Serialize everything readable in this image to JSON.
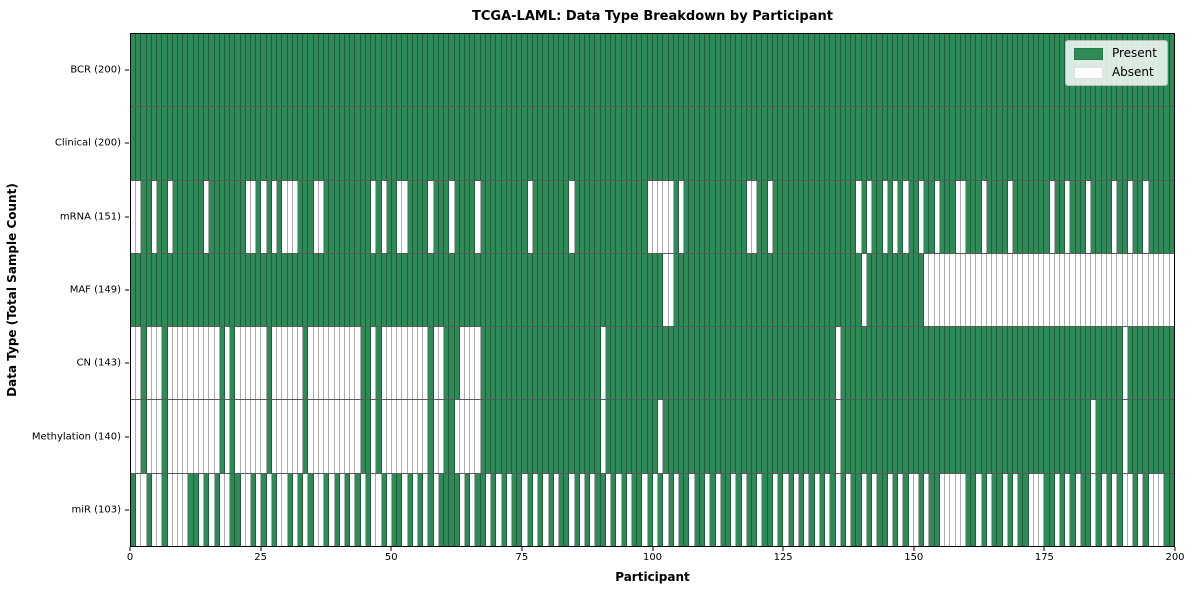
{
  "chart_data": {
    "type": "heatmap",
    "title": "TCGA-LAML: Data Type Breakdown by Participant",
    "xlabel": "Participant",
    "ylabel": "Data Type (Total Sample Count)",
    "x_range": [
      0,
      200
    ],
    "n_participants": 200,
    "x_ticks": [
      0,
      25,
      50,
      75,
      100,
      125,
      150,
      175,
      200
    ],
    "grid": "cell-edges",
    "legend_position": "upper right",
    "legend": [
      {
        "label": "Present",
        "color": "#2e8b57"
      },
      {
        "label": "Absent",
        "color": "#ffffff"
      }
    ],
    "cell_edge_color": "rgba(0,0,0,0.32)",
    "rows": [
      {
        "label": "BCR (200)",
        "present_count": 200,
        "absent_participants": []
      },
      {
        "label": "Clinical (200)",
        "present_count": 200,
        "absent_participants": []
      },
      {
        "label": "mRNA (151)",
        "present_count": 151,
        "absent_participants": [
          0,
          1,
          4,
          7,
          14,
          22,
          23,
          25,
          27,
          29,
          30,
          31,
          35,
          36,
          46,
          48,
          51,
          52,
          57,
          61,
          66,
          76,
          84,
          99,
          100,
          101,
          102,
          103,
          105,
          118,
          119,
          122,
          139,
          141,
          144,
          146,
          148,
          151,
          154,
          158,
          159,
          163,
          168,
          176,
          179,
          183,
          188,
          191,
          194
        ]
      },
      {
        "label": "MAF (149)",
        "present_count": 149,
        "absent_participants": [
          102,
          103,
          140,
          152,
          153,
          154,
          155,
          156,
          157,
          158,
          159,
          160,
          161,
          162,
          163,
          164,
          165,
          166,
          167,
          168,
          169,
          170,
          171,
          172,
          173,
          174,
          175,
          176,
          177,
          178,
          179,
          180,
          181,
          182,
          183,
          184,
          185,
          186,
          187,
          188,
          189,
          190,
          191,
          192,
          193,
          194,
          195,
          196,
          197,
          198,
          199
        ]
      },
      {
        "label": "CN (143)",
        "present_count": 143,
        "absent_participants": [
          0,
          1,
          3,
          4,
          5,
          7,
          8,
          9,
          10,
          11,
          12,
          13,
          14,
          15,
          16,
          18,
          20,
          21,
          22,
          23,
          24,
          25,
          27,
          28,
          29,
          30,
          31,
          32,
          34,
          35,
          36,
          37,
          38,
          39,
          40,
          41,
          42,
          43,
          46,
          48,
          49,
          50,
          51,
          52,
          53,
          54,
          55,
          56,
          58,
          59,
          63,
          64,
          65,
          66,
          90,
          135,
          190
        ]
      },
      {
        "label": "Methylation (140)",
        "present_count": 140,
        "absent_participants": [
          0,
          1,
          3,
          4,
          5,
          7,
          8,
          9,
          10,
          11,
          12,
          13,
          14,
          15,
          16,
          18,
          20,
          21,
          22,
          23,
          24,
          25,
          27,
          28,
          29,
          30,
          31,
          32,
          34,
          35,
          36,
          37,
          38,
          39,
          40,
          41,
          42,
          43,
          46,
          48,
          49,
          50,
          51,
          52,
          53,
          54,
          55,
          56,
          58,
          59,
          62,
          63,
          64,
          65,
          66,
          90,
          101,
          135,
          184,
          190
        ]
      },
      {
        "label": "miR (103)",
        "present_count": 103,
        "absent_participants": [
          1,
          2,
          4,
          5,
          7,
          8,
          9,
          10,
          13,
          15,
          17,
          18,
          21,
          22,
          24,
          26,
          28,
          29,
          31,
          33,
          35,
          36,
          38,
          40,
          42,
          44,
          46,
          47,
          49,
          52,
          54,
          56,
          58,
          63,
          65,
          68,
          70,
          72,
          75,
          77,
          79,
          81,
          84,
          86,
          88,
          91,
          93,
          95,
          98,
          100,
          102,
          104,
          107,
          110,
          112,
          115,
          117,
          120,
          123,
          125,
          127,
          129,
          131,
          133,
          135,
          137,
          140,
          142,
          145,
          147,
          149,
          150,
          152,
          155,
          156,
          157,
          158,
          159,
          162,
          164,
          167,
          169,
          172,
          173,
          174,
          177,
          179,
          181,
          184,
          186,
          188,
          190,
          191,
          193,
          195,
          196,
          197
        ]
      }
    ]
  }
}
